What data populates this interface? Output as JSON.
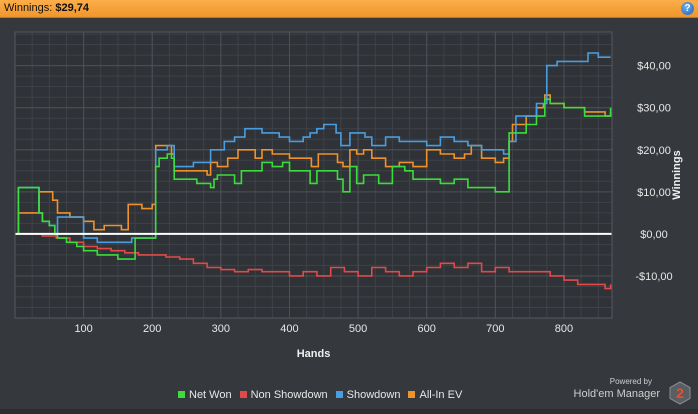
{
  "header": {
    "winnings_label": "Winnings:",
    "winnings_value": "$29,74",
    "help_label": "?"
  },
  "branding": {
    "powered_by": "Powered by",
    "product": "Hold'em Manager",
    "badge": "2"
  },
  "colors": {
    "net_won": "#3ddc3d",
    "non_showdown": "#e24a4a",
    "showdown": "#4a9ee0",
    "all_in_ev": "#f0922b",
    "zero_line": "#ffffff"
  },
  "chart_data": {
    "type": "line",
    "title": "",
    "xlabel": "Hands",
    "ylabel": "Winnings",
    "xlim": [
      0,
      870
    ],
    "ylim": [
      -20,
      48
    ],
    "grid": true,
    "legend_position": "bottom",
    "x_ticks": [
      100,
      200,
      300,
      400,
      500,
      600,
      700,
      800
    ],
    "y_ticks": [
      {
        "value": 40,
        "label": "$40,00"
      },
      {
        "value": 30,
        "label": "$30,00"
      },
      {
        "value": 20,
        "label": "$20,00"
      },
      {
        "value": 10,
        "label": "$10,00"
      },
      {
        "value": 0,
        "label": "$0,00"
      },
      {
        "value": -10,
        "label": "-$10,00"
      }
    ],
    "series": [
      {
        "name": "Net Won",
        "points": [
          [
            0,
            0
          ],
          [
            5,
            11
          ],
          [
            30,
            11
          ],
          [
            35,
            5
          ],
          [
            40,
            3
          ],
          [
            50,
            2
          ],
          [
            58,
            0
          ],
          [
            62,
            -1
          ],
          [
            75,
            -2
          ],
          [
            90,
            -3
          ],
          [
            100,
            -4
          ],
          [
            120,
            -5
          ],
          [
            150,
            -6
          ],
          [
            160,
            -6
          ],
          [
            175,
            -1
          ],
          [
            200,
            -1
          ],
          [
            205,
            16
          ],
          [
            210,
            18
          ],
          [
            215,
            18
          ],
          [
            222,
            19
          ],
          [
            228,
            18
          ],
          [
            232,
            13
          ],
          [
            240,
            13
          ],
          [
            265,
            12
          ],
          [
            285,
            11
          ],
          [
            290,
            13
          ],
          [
            295,
            14
          ],
          [
            300,
            14
          ],
          [
            320,
            12
          ],
          [
            330,
            15
          ],
          [
            350,
            15
          ],
          [
            360,
            17
          ],
          [
            375,
            16
          ],
          [
            390,
            17
          ],
          [
            400,
            15
          ],
          [
            412,
            15
          ],
          [
            420,
            15
          ],
          [
            430,
            12
          ],
          [
            440,
            15
          ],
          [
            450,
            15
          ],
          [
            460,
            15
          ],
          [
            470,
            13
          ],
          [
            478,
            10
          ],
          [
            488,
            16
          ],
          [
            498,
            12
          ],
          [
            508,
            14
          ],
          [
            520,
            14
          ],
          [
            530,
            12
          ],
          [
            550,
            16
          ],
          [
            568,
            15
          ],
          [
            580,
            13
          ],
          [
            600,
            13
          ],
          [
            620,
            12
          ],
          [
            640,
            13
          ],
          [
            660,
            11
          ],
          [
            680,
            11
          ],
          [
            700,
            10
          ],
          [
            712,
            10
          ],
          [
            720,
            24
          ],
          [
            725,
            24
          ],
          [
            745,
            26
          ],
          [
            760,
            28
          ],
          [
            770,
            28
          ],
          [
            772,
            32
          ],
          [
            780,
            31
          ],
          [
            800,
            30
          ],
          [
            830,
            28
          ],
          [
            860,
            28
          ],
          [
            868,
            30
          ]
        ]
      },
      {
        "name": "Non Showdown",
        "points": [
          [
            0,
            0
          ],
          [
            20,
            0
          ],
          [
            40,
            -0.5
          ],
          [
            60,
            -1
          ],
          [
            80,
            -2
          ],
          [
            100,
            -3
          ],
          [
            120,
            -3.5
          ],
          [
            140,
            -4
          ],
          [
            160,
            -4.5
          ],
          [
            180,
            -5
          ],
          [
            200,
            -5
          ],
          [
            220,
            -5.5
          ],
          [
            240,
            -6
          ],
          [
            260,
            -7
          ],
          [
            280,
            -8
          ],
          [
            300,
            -8.5
          ],
          [
            320,
            -9
          ],
          [
            340,
            -8.5
          ],
          [
            360,
            -9
          ],
          [
            380,
            -9
          ],
          [
            400,
            -10
          ],
          [
            420,
            -9
          ],
          [
            440,
            -10
          ],
          [
            460,
            -8
          ],
          [
            480,
            -9
          ],
          [
            500,
            -10
          ],
          [
            520,
            -8
          ],
          [
            540,
            -9
          ],
          [
            560,
            -10
          ],
          [
            580,
            -9
          ],
          [
            600,
            -8
          ],
          [
            620,
            -7
          ],
          [
            640,
            -8
          ],
          [
            660,
            -7
          ],
          [
            680,
            -9
          ],
          [
            700,
            -8
          ],
          [
            720,
            -9
          ],
          [
            740,
            -9
          ],
          [
            760,
            -9
          ],
          [
            780,
            -10
          ],
          [
            800,
            -11
          ],
          [
            820,
            -12
          ],
          [
            840,
            -12
          ],
          [
            860,
            -13
          ],
          [
            868,
            -12
          ]
        ]
      },
      {
        "name": "Showdown",
        "points": [
          [
            0,
            0
          ],
          [
            5,
            11
          ],
          [
            30,
            11
          ],
          [
            35,
            5
          ],
          [
            40,
            3
          ],
          [
            50,
            2
          ],
          [
            58,
            0
          ],
          [
            62,
            4
          ],
          [
            90,
            4
          ],
          [
            100,
            -1
          ],
          [
            120,
            -2
          ],
          [
            160,
            -2
          ],
          [
            170,
            -1
          ],
          [
            200,
            -1
          ],
          [
            205,
            20
          ],
          [
            215,
            20
          ],
          [
            222,
            21
          ],
          [
            232,
            16
          ],
          [
            260,
            17
          ],
          [
            280,
            17
          ],
          [
            285,
            20
          ],
          [
            300,
            20
          ],
          [
            305,
            22
          ],
          [
            320,
            23
          ],
          [
            335,
            25
          ],
          [
            355,
            25
          ],
          [
            360,
            24
          ],
          [
            375,
            24
          ],
          [
            385,
            23
          ],
          [
            400,
            22
          ],
          [
            410,
            22
          ],
          [
            420,
            23
          ],
          [
            430,
            24
          ],
          [
            440,
            25
          ],
          [
            450,
            26
          ],
          [
            460,
            26
          ],
          [
            468,
            24
          ],
          [
            475,
            21
          ],
          [
            488,
            24
          ],
          [
            500,
            24
          ],
          [
            510,
            23
          ],
          [
            520,
            21
          ],
          [
            540,
            23
          ],
          [
            560,
            22
          ],
          [
            580,
            22
          ],
          [
            600,
            21
          ],
          [
            620,
            23
          ],
          [
            640,
            22
          ],
          [
            660,
            21
          ],
          [
            680,
            20
          ],
          [
            700,
            20
          ],
          [
            712,
            19
          ],
          [
            720,
            22
          ],
          [
            725,
            22
          ],
          [
            730,
            28
          ],
          [
            760,
            31
          ],
          [
            770,
            31
          ],
          [
            775,
            40
          ],
          [
            790,
            41
          ],
          [
            820,
            41
          ],
          [
            835,
            43
          ],
          [
            850,
            42
          ],
          [
            868,
            42
          ]
        ]
      },
      {
        "name": "All-In EV",
        "points": [
          [
            0,
            0
          ],
          [
            5,
            5
          ],
          [
            30,
            5
          ],
          [
            35,
            10
          ],
          [
            50,
            10
          ],
          [
            55,
            8
          ],
          [
            62,
            5
          ],
          [
            80,
            4
          ],
          [
            90,
            4
          ],
          [
            100,
            3
          ],
          [
            115,
            1
          ],
          [
            130,
            2
          ],
          [
            155,
            1
          ],
          [
            165,
            7
          ],
          [
            185,
            6
          ],
          [
            200,
            7
          ],
          [
            205,
            21
          ],
          [
            215,
            21
          ],
          [
            222,
            21
          ],
          [
            228,
            19
          ],
          [
            232,
            15
          ],
          [
            260,
            15
          ],
          [
            280,
            14
          ],
          [
            285,
            17
          ],
          [
            295,
            16
          ],
          [
            310,
            18
          ],
          [
            325,
            20
          ],
          [
            340,
            20
          ],
          [
            350,
            18
          ],
          [
            360,
            20
          ],
          [
            375,
            19
          ],
          [
            390,
            19
          ],
          [
            400,
            18
          ],
          [
            420,
            18
          ],
          [
            432,
            16
          ],
          [
            442,
            19
          ],
          [
            455,
            19
          ],
          [
            470,
            17
          ],
          [
            478,
            16
          ],
          [
            488,
            20
          ],
          [
            498,
            19
          ],
          [
            508,
            20
          ],
          [
            520,
            18
          ],
          [
            540,
            16
          ],
          [
            560,
            17
          ],
          [
            580,
            16
          ],
          [
            600,
            20
          ],
          [
            620,
            19
          ],
          [
            640,
            18
          ],
          [
            655,
            19
          ],
          [
            665,
            21
          ],
          [
            680,
            18
          ],
          [
            700,
            17
          ],
          [
            712,
            18
          ],
          [
            720,
            22
          ],
          [
            725,
            26
          ],
          [
            745,
            28
          ],
          [
            760,
            30
          ],
          [
            770,
            31
          ],
          [
            772,
            33
          ],
          [
            780,
            31
          ],
          [
            800,
            30
          ],
          [
            830,
            29
          ],
          [
            860,
            28
          ],
          [
            868,
            29
          ]
        ]
      }
    ]
  }
}
